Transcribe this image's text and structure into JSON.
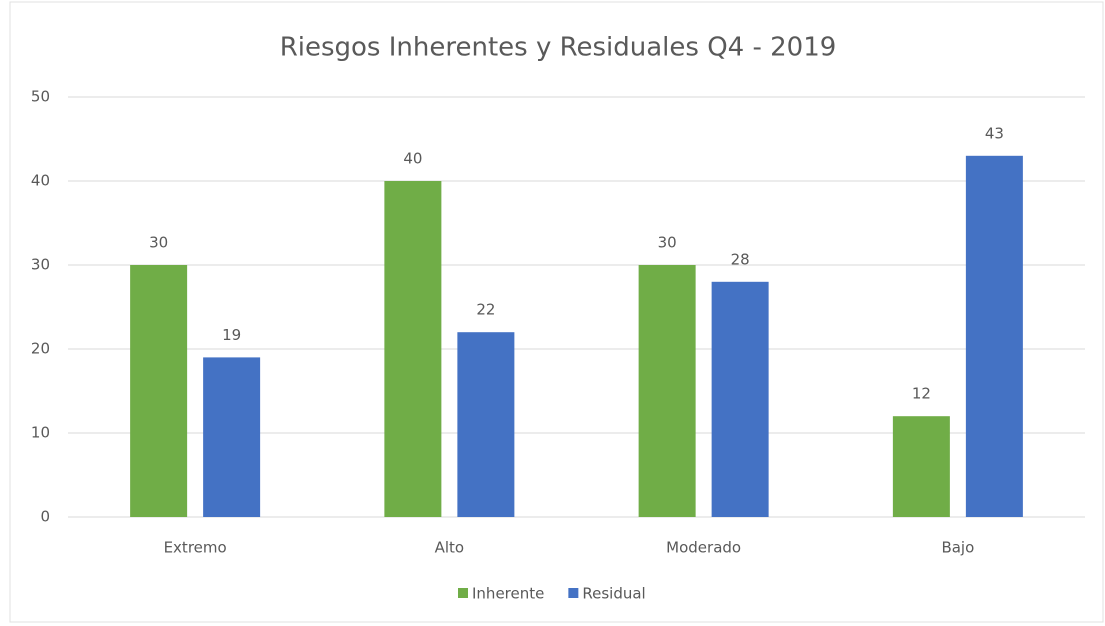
{
  "chart_data": {
    "type": "bar",
    "title": "Riesgos Inherentes y Residuales Q4 - 2019",
    "categories": [
      "Extremo",
      "Alto",
      "Moderado",
      "Bajo"
    ],
    "series": [
      {
        "name": "Inherente",
        "color": "#70ad47",
        "values": [
          30,
          40,
          30,
          12
        ]
      },
      {
        "name": "Residual",
        "color": "#4472c4",
        "values": [
          19,
          22,
          28,
          43
        ]
      }
    ],
    "ylim": [
      0,
      50
    ],
    "yticks": [
      0,
      10,
      20,
      30,
      40,
      50
    ],
    "grid": true,
    "legend": "bottom"
  }
}
